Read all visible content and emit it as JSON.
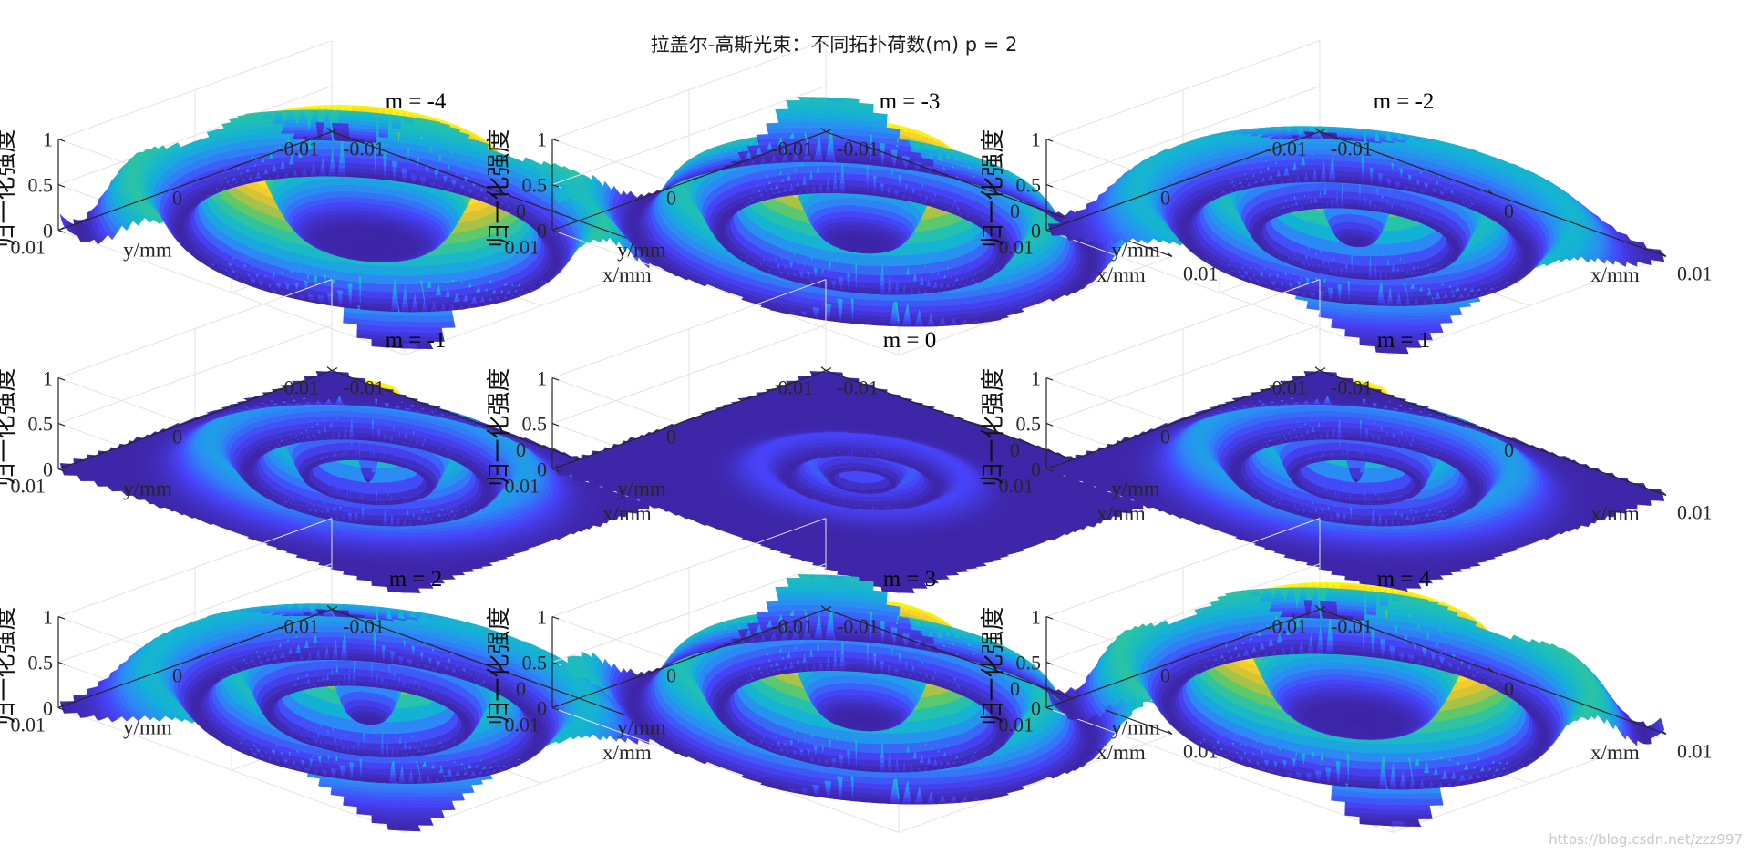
{
  "figure": {
    "title": "拉盖尔-高斯光束：不同拓扑荷数(m)    p = 2",
    "watermark": "https://blog.csdn.net/zzz997",
    "colormap": [
      "#3e26a8",
      "#4743f8",
      "#2e87f7",
      "#14b1d8",
      "#22c1b0",
      "#60c969",
      "#c1c13a",
      "#f9cd2d",
      "#f9fb15"
    ],
    "grid": true
  },
  "chart_data": {
    "type": "surface",
    "grid_layout": [
      3,
      3
    ],
    "p": 2,
    "plots": [
      {
        "title": "m = -4",
        "m": -4
      },
      {
        "title": "m = -3",
        "m": -3
      },
      {
        "title": "m = -2",
        "m": -2
      },
      {
        "title": "m = -1",
        "m": -1
      },
      {
        "title": "m = 0",
        "m": 0
      },
      {
        "title": "m = 1",
        "m": 1
      },
      {
        "title": "m = 2",
        "m": 2
      },
      {
        "title": "m = 3",
        "m": 3
      },
      {
        "title": "m = 4",
        "m": 4
      }
    ],
    "axes": {
      "xlabel": "x/mm",
      "ylabel": "y/mm",
      "zlabel": "归一化强度",
      "x_ticks": [
        "-0.01",
        "0",
        "0.01"
      ],
      "y_ticks": [
        "0.01",
        "0",
        "-0.01"
      ],
      "z_ticks": [
        "0",
        "0.5",
        "1"
      ],
      "xlim": [
        -0.01,
        0.01
      ],
      "ylim": [
        -0.01,
        0.01
      ],
      "zlim": [
        0,
        1
      ]
    }
  }
}
